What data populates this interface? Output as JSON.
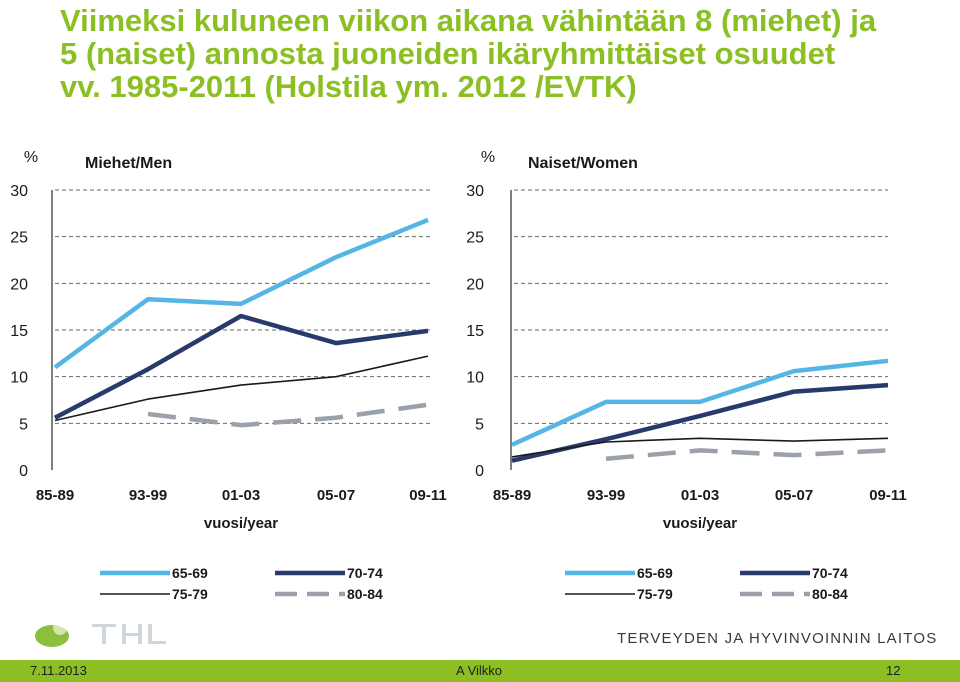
{
  "title": {
    "line1": "Viimeksi kuluneen viikon aikana vähintään 8 (miehet) ja",
    "line2": "5 (naiset) annosta juoneiden ikäryhmittäiset osuudet",
    "line3": "vv. 1985-2011 (Holstila ym. 2012 /EVTK)"
  },
  "footer": {
    "date": "7.11.2013",
    "author": "A Vilkko",
    "page": "12"
  },
  "org": {
    "name": "TERVEYDEN JA HYVINVOINNIN LAITOS",
    "logo_icon": "thl-logo-icon"
  },
  "colors": {
    "accent": "#8bbf23",
    "series_6569": "#55b6e6",
    "series_7074": "#283a6b",
    "series_7579": "#1a1a1a",
    "series_8084": "#9aa1aa"
  },
  "chart_data": [
    {
      "type": "line",
      "title": "Miehet/Men",
      "y_unit": "%",
      "xlabel": "vuosi/year",
      "categories": [
        "85-89",
        "93-99",
        "01-03",
        "05-07",
        "09-11"
      ],
      "ylim": [
        0,
        30
      ],
      "yticks": [
        0,
        5,
        10,
        15,
        20,
        25,
        30
      ],
      "grid": "dashed horizontal",
      "legend_position": "bottom",
      "series": [
        {
          "name": "65-69",
          "values": [
            11,
            18.3,
            17.8,
            22.8,
            26.8
          ]
        },
        {
          "name": "70-74",
          "values": [
            5.6,
            10.8,
            16.5,
            13.6,
            14.9
          ]
        },
        {
          "name": "75-79",
          "values": [
            5.3,
            7.6,
            9.1,
            10.0,
            12.2
          ]
        },
        {
          "name": "80-84",
          "values": [
            null,
            6.0,
            4.8,
            5.6,
            7.0
          ]
        }
      ]
    },
    {
      "type": "line",
      "title": "Naiset/Women",
      "y_unit": "%",
      "xlabel": "vuosi/year",
      "categories": [
        "85-89",
        "93-99",
        "01-03",
        "05-07",
        "09-11"
      ],
      "ylim": [
        0,
        30
      ],
      "yticks": [
        0,
        5,
        10,
        15,
        20,
        25,
        30
      ],
      "grid": "dashed horizontal",
      "legend_position": "bottom",
      "series": [
        {
          "name": "65-69",
          "values": [
            2.7,
            7.3,
            7.3,
            10.6,
            11.7
          ]
        },
        {
          "name": "70-74",
          "values": [
            1.0,
            3.3,
            5.8,
            8.4,
            9.1
          ]
        },
        {
          "name": "75-79",
          "values": [
            1.4,
            3.0,
            3.4,
            3.1,
            3.4
          ]
        },
        {
          "name": "80-84",
          "values": [
            null,
            1.2,
            2.1,
            1.6,
            2.1
          ]
        }
      ]
    }
  ]
}
